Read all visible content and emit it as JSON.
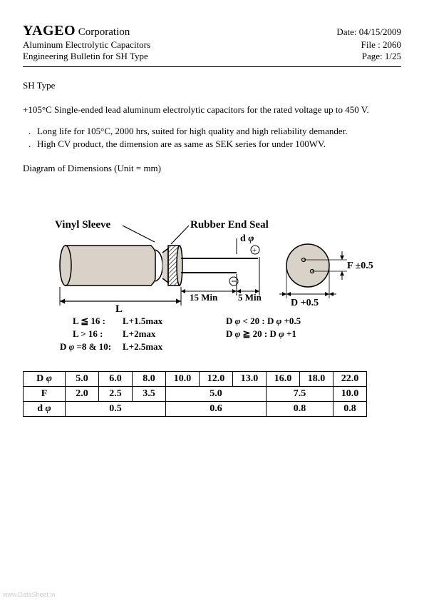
{
  "header": {
    "company_bold": "YAGEO",
    "company_rest": " Corporation",
    "line2_left": "Aluminum Electrolytic Capacitors",
    "line3_left": "Engineering Bulletin for SH Type",
    "date": "Date: 04/15/2009",
    "file": "File : 2060",
    "page": "Page: 1/25"
  },
  "section": {
    "type_title": "SH Type",
    "intro": "+105°C Single-ended lead aluminum electrolytic capacitors for the rated voltage up to 450 V.",
    "bullet1": "Long life for 105°C, 2000 hrs, suited for high quality and high reliability demander.",
    "bullet2": "High CV product, the dimension are as same as SEK series for under 100WV.",
    "diagram_caption": "Diagram of Dimensions    (Unit = mm)"
  },
  "diagram": {
    "label_vinyl": "Vinyl  Sleeve",
    "label_rubber": "Rubber  End  Seal",
    "label_dphi": "d",
    "label_F": "F ±0.5",
    "label_D": "D +0.5",
    "label_L": "L",
    "label_15min": "15 Min",
    "label_5min": "5 Min",
    "note_L1a": "L ≦ 16 :",
    "note_L1b": "L+1.5max",
    "note_L2a": "L > 16 :",
    "note_L2b": "L+2max",
    "note_L3a": "D    =8 & 10:",
    "note_L3b": "L+2.5max",
    "note_D1": "D    < 20 : D    +0.5",
    "note_D2": "D    ≧ 20 : D    +1",
    "body_fill": "#d9d2c8",
    "body_stroke": "#000000",
    "hatch_color": "#5a5a5a"
  },
  "table": {
    "rows": [
      {
        "label": "D",
        "phi": true,
        "cells": [
          "5.0",
          "6.0",
          "8.0",
          "10.0",
          "12.0",
          "13.0",
          "16.0",
          "18.0",
          "22.0"
        ],
        "spans": [
          1,
          1,
          1,
          1,
          1,
          1,
          1,
          1,
          1
        ]
      },
      {
        "label": "F",
        "phi": false,
        "cells": [
          "2.0",
          "2.5",
          "3.5",
          "5.0",
          "7.5",
          "10.0"
        ],
        "spans": [
          1,
          1,
          1,
          3,
          2,
          1
        ]
      },
      {
        "label": "d",
        "phi": true,
        "cells": [
          "0.5",
          "0.6",
          "0.8",
          "0.8"
        ],
        "spans": [
          3,
          3,
          2,
          1
        ]
      }
    ]
  },
  "watermark": "www.DataSheet.in"
}
